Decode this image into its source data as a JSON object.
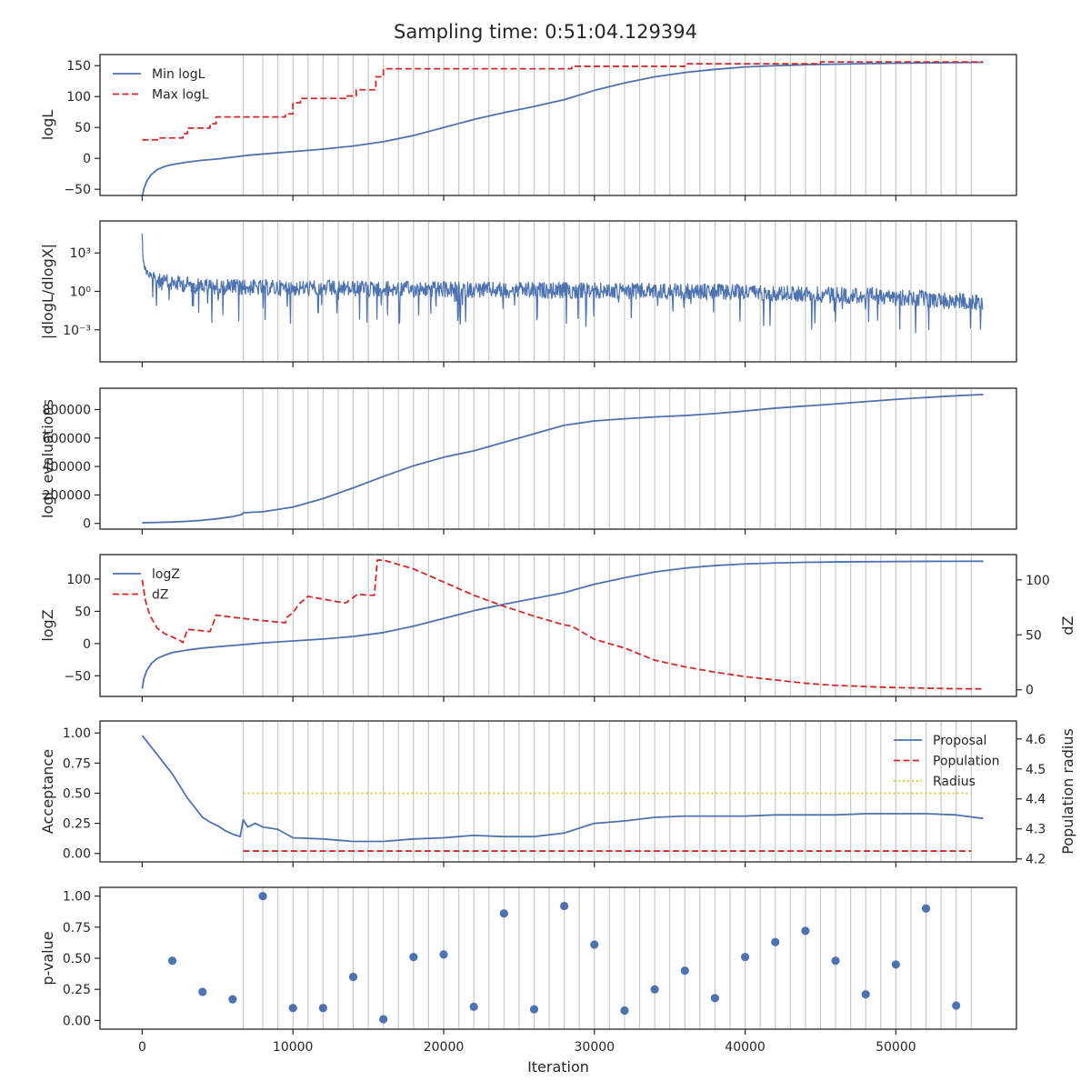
{
  "title": "Sampling time: 0:51:04.129394",
  "colors": {
    "blue": "#4c72b0",
    "red": "#d62728",
    "yellow": "#e6c229",
    "vline": "#c8c8c8",
    "axis": "#262626"
  },
  "vlines_x": [
    6700,
    8000,
    9000,
    10000,
    11000,
    12000,
    13000,
    14000,
    15000,
    16000,
    17000,
    18000,
    19000,
    20000,
    21000,
    22000,
    23000,
    24000,
    25000,
    26000,
    27000,
    28000,
    29000,
    30000,
    31000,
    32000,
    33000,
    34000,
    35000,
    36000,
    37000,
    38000,
    39000,
    40000,
    41000,
    42000,
    43000,
    44000,
    45000,
    46000,
    47000,
    48000,
    49000,
    50000,
    51000,
    52000,
    53000,
    54000,
    55000
  ],
  "xaxis": {
    "label": "Iteration",
    "xlim": [
      -2800,
      58000
    ],
    "ticks": [
      0,
      10000,
      20000,
      30000,
      40000,
      50000
    ],
    "tick_labels": [
      "0",
      "10000",
      "20000",
      "30000",
      "40000",
      "50000"
    ]
  },
  "chart_data": [
    {
      "type": "line",
      "ylabel": "logL",
      "ylim": [
        -60,
        168
      ],
      "yticks": [
        -50,
        0,
        50,
        100,
        150
      ],
      "ytick_labels": [
        "−50",
        "0",
        "50",
        "100",
        "150"
      ],
      "legend_position": "upper-left",
      "series": [
        {
          "name": "Min logL",
          "style": "solid",
          "color": "#4c72b0",
          "x": [
            0,
            100,
            300,
            600,
            1000,
            1500,
            2000,
            3000,
            4000,
            5000,
            6000,
            7000,
            8000,
            10000,
            12000,
            14000,
            16000,
            18000,
            20000,
            22000,
            24000,
            26000,
            28000,
            30000,
            32000,
            34000,
            36000,
            38000,
            40000,
            42000,
            44000,
            46000,
            48000,
            50000,
            52000,
            54000,
            55800
          ],
          "y": [
            -65,
            -50,
            -37,
            -26,
            -18,
            -13,
            -10,
            -6,
            -3,
            -1,
            2,
            5,
            7,
            11,
            15,
            20,
            27,
            37,
            50,
            63,
            74,
            84,
            95,
            110,
            122,
            132,
            139,
            144,
            148,
            150,
            151.5,
            152.5,
            153.3,
            154,
            154.5,
            155,
            155.5
          ]
        },
        {
          "name": "Max logL",
          "style": "dashed",
          "color": "#d62728",
          "x": [
            0,
            1100,
            1100,
            2700,
            2700,
            3000,
            3000,
            4500,
            4500,
            4900,
            4900,
            9500,
            9500,
            10000,
            10000,
            10500,
            10500,
            13500,
            13500,
            14200,
            14200,
            15500,
            15500,
            16000,
            16000,
            28500,
            28500,
            36000,
            36000,
            45000,
            45000,
            55800
          ],
          "y": [
            30,
            30,
            33,
            33,
            40,
            40,
            49,
            49,
            56,
            56,
            67,
            67,
            72,
            72,
            90,
            90,
            97,
            97,
            101,
            101,
            111,
            111,
            132,
            132,
            145,
            145,
            149,
            149,
            153,
            153,
            156,
            156
          ]
        }
      ]
    },
    {
      "type": "line",
      "ylabel": "|dlogL/dlogX|",
      "yscale": "log",
      "ylim_log10": [
        -5.5,
        5.5
      ],
      "yticks_log10": [
        -3,
        0,
        3
      ],
      "ytick_labels": [
        "10⁻³",
        "10⁰",
        "10³"
      ],
      "series": [
        {
          "name": "",
          "style": "solid",
          "color": "#4c72b0",
          "x": [
            0,
            20,
            60,
            150,
            300,
            500,
            800,
            1200,
            2000,
            3000,
            5000,
            10000,
            20000,
            30000,
            40000,
            48000,
            55800
          ],
          "y_log10": [
            4.9,
            3.8,
            2.8,
            2.2,
            1.8,
            1.6,
            1.5,
            1.4,
            1.3,
            1.2,
            1.0,
            0.9,
            0.8,
            0.7,
            0.6,
            0.3,
            -0.2
          ]
        }
      ]
    },
    {
      "type": "line",
      "ylabel": "logL evaluations",
      "ylim": [
        -40000,
        950000
      ],
      "yticks": [
        0,
        200000,
        400000,
        600000,
        800000
      ],
      "ytick_labels": [
        "0",
        "200000",
        "400000",
        "600000",
        "800000"
      ],
      "series": [
        {
          "name": "",
          "style": "solid",
          "color": "#4c72b0",
          "x": [
            0,
            1000,
            2000,
            3000,
            4000,
            5000,
            6000,
            6600,
            6700,
            8000,
            10000,
            12000,
            14000,
            16000,
            18000,
            20000,
            22000,
            24000,
            26000,
            28000,
            30000,
            32000,
            34000,
            36000,
            38000,
            40000,
            42000,
            44000,
            46000,
            48000,
            50000,
            52000,
            54000,
            55800
          ],
          "y": [
            5000,
            7000,
            10000,
            15000,
            22000,
            33000,
            48000,
            62000,
            75000,
            82000,
            115000,
            175000,
            250000,
            330000,
            405000,
            465000,
            510000,
            570000,
            630000,
            690000,
            720000,
            735000,
            748000,
            758000,
            772000,
            790000,
            810000,
            825000,
            840000,
            856000,
            872000,
            885000,
            897000,
            906000
          ]
        }
      ]
    },
    {
      "type": "line",
      "ylabel": "logZ",
      "ylabel_right": "dZ",
      "ylim": [
        -82,
        138
      ],
      "yticks": [
        -50,
        0,
        50,
        100
      ],
      "ytick_labels": [
        "−50",
        "0",
        "50",
        "100"
      ],
      "ylim_right": [
        -6,
        123
      ],
      "yticks_right": [
        0,
        50,
        100
      ],
      "ytick_labels_right": [
        "0",
        "50",
        "100"
      ],
      "legend_position": "upper-left",
      "series": [
        {
          "name": "logZ",
          "axis": "left",
          "style": "solid",
          "color": "#4c72b0",
          "x": [
            0,
            100,
            300,
            600,
            1000,
            1500,
            2000,
            3000,
            4000,
            5000,
            6000,
            7000,
            8000,
            10000,
            12000,
            14000,
            16000,
            18000,
            20000,
            22000,
            24000,
            26000,
            28000,
            30000,
            32000,
            34000,
            36000,
            38000,
            40000,
            42000,
            44000,
            46000,
            48000,
            50000,
            52000,
            54000,
            55800
          ],
          "y": [
            -70,
            -55,
            -42,
            -31,
            -23,
            -18,
            -14,
            -10,
            -7,
            -5,
            -3,
            -1,
            1,
            4,
            7,
            11,
            17,
            27,
            39,
            51,
            61,
            70,
            79,
            92,
            102,
            111,
            117,
            121,
            123.5,
            125,
            126,
            126.6,
            127,
            127.3,
            127.5,
            127.6,
            127.7
          ]
        },
        {
          "name": "dZ",
          "axis": "right",
          "style": "dashed",
          "color": "#d62728",
          "x": [
            0,
            200,
            500,
            1000,
            1500,
            2000,
            2500,
            2700,
            3000,
            4500,
            4700,
            4900,
            6000,
            8000,
            9500,
            9600,
            10000,
            10400,
            11000,
            13000,
            13500,
            14000,
            14300,
            15000,
            15400,
            15600,
            16000,
            18000,
            20000,
            22000,
            24000,
            26000,
            28000,
            28500,
            30000,
            32000,
            34000,
            36000,
            38000,
            40000,
            42000,
            44000,
            46000,
            48000,
            50000,
            52000,
            54000,
            55800
          ],
          "y": [
            100,
            82,
            68,
            56,
            51,
            48,
            45,
            43,
            55,
            53,
            60,
            68,
            66,
            63,
            61,
            66,
            70,
            78,
            85,
            80,
            79,
            84,
            87,
            86,
            86,
            118,
            118,
            110,
            98,
            86,
            76,
            67,
            59,
            58,
            46,
            38,
            27,
            21,
            16,
            12,
            9,
            6,
            4,
            3,
            2,
            1.5,
            1,
            0.8
          ]
        }
      ]
    },
    {
      "type": "line",
      "ylabel": "Acceptance",
      "ylabel_right": "Population radius",
      "ylim": [
        -0.07,
        1.1
      ],
      "yticks": [
        0.0,
        0.25,
        0.5,
        0.75,
        1.0
      ],
      "ytick_labels": [
        "0.00",
        "0.25",
        "0.50",
        "0.75",
        "1.00"
      ],
      "ylim_right": [
        4.19,
        4.66
      ],
      "yticks_right": [
        4.2,
        4.3,
        4.4,
        4.5,
        4.6
      ],
      "ytick_labels_right": [
        "4.2",
        "4.3",
        "4.4",
        "4.5",
        "4.6"
      ],
      "legend_position": "upper-right",
      "series": [
        {
          "name": "Proposal",
          "axis": "left",
          "style": "solid",
          "color": "#4c72b0",
          "x": [
            0,
            500,
            1000,
            1500,
            2000,
            2500,
            3000,
            3500,
            4000,
            4500,
            5000,
            5500,
            6000,
            6500,
            6700,
            7000,
            7500,
            8000,
            9000,
            10000,
            12000,
            14000,
            16000,
            18000,
            20000,
            22000,
            24000,
            26000,
            28000,
            30000,
            32000,
            34000,
            36000,
            38000,
            40000,
            42000,
            44000,
            46000,
            48000,
            50000,
            52000,
            54000,
            55800
          ],
          "y": [
            0.98,
            0.9,
            0.82,
            0.74,
            0.66,
            0.56,
            0.46,
            0.38,
            0.3,
            0.26,
            0.23,
            0.19,
            0.16,
            0.14,
            0.28,
            0.22,
            0.25,
            0.22,
            0.2,
            0.13,
            0.12,
            0.1,
            0.1,
            0.12,
            0.13,
            0.15,
            0.14,
            0.14,
            0.17,
            0.25,
            0.27,
            0.3,
            0.31,
            0.31,
            0.31,
            0.32,
            0.32,
            0.32,
            0.33,
            0.33,
            0.33,
            0.32,
            0.29
          ]
        },
        {
          "name": "Population",
          "axis": "left",
          "style": "dashed",
          "color": "#d62728",
          "x": [
            6700,
            55000
          ],
          "y": [
            0.02,
            0.02
          ]
        },
        {
          "name": "Radius",
          "axis": "left",
          "style": "dotted",
          "color": "#e6c229",
          "x": [
            6700,
            55000
          ],
          "y": [
            0.5,
            0.5
          ]
        }
      ]
    },
    {
      "type": "scatter",
      "ylabel": "p-value",
      "ylim": [
        -0.07,
        1.07
      ],
      "yticks": [
        0.0,
        0.25,
        0.5,
        0.75,
        1.0
      ],
      "ytick_labels": [
        "0.00",
        "0.25",
        "0.50",
        "0.75",
        "1.00"
      ],
      "series": [
        {
          "name": "",
          "color": "#4c72b0",
          "x": [
            2000,
            4000,
            6000,
            8000,
            10000,
            12000,
            14000,
            16000,
            18000,
            20000,
            22000,
            24000,
            26000,
            28000,
            30000,
            32000,
            34000,
            36000,
            38000,
            40000,
            42000,
            44000,
            46000,
            48000,
            50000,
            52000,
            54000
          ],
          "y": [
            0.48,
            0.23,
            0.17,
            1.0,
            0.1,
            0.1,
            0.35,
            0.01,
            0.51,
            0.53,
            0.11,
            0.86,
            0.09,
            0.92,
            0.61,
            0.08,
            0.25,
            0.4,
            0.18,
            0.51,
            0.63,
            0.72,
            0.48,
            0.21,
            0.45,
            0.9,
            0.12
          ]
        }
      ]
    }
  ]
}
